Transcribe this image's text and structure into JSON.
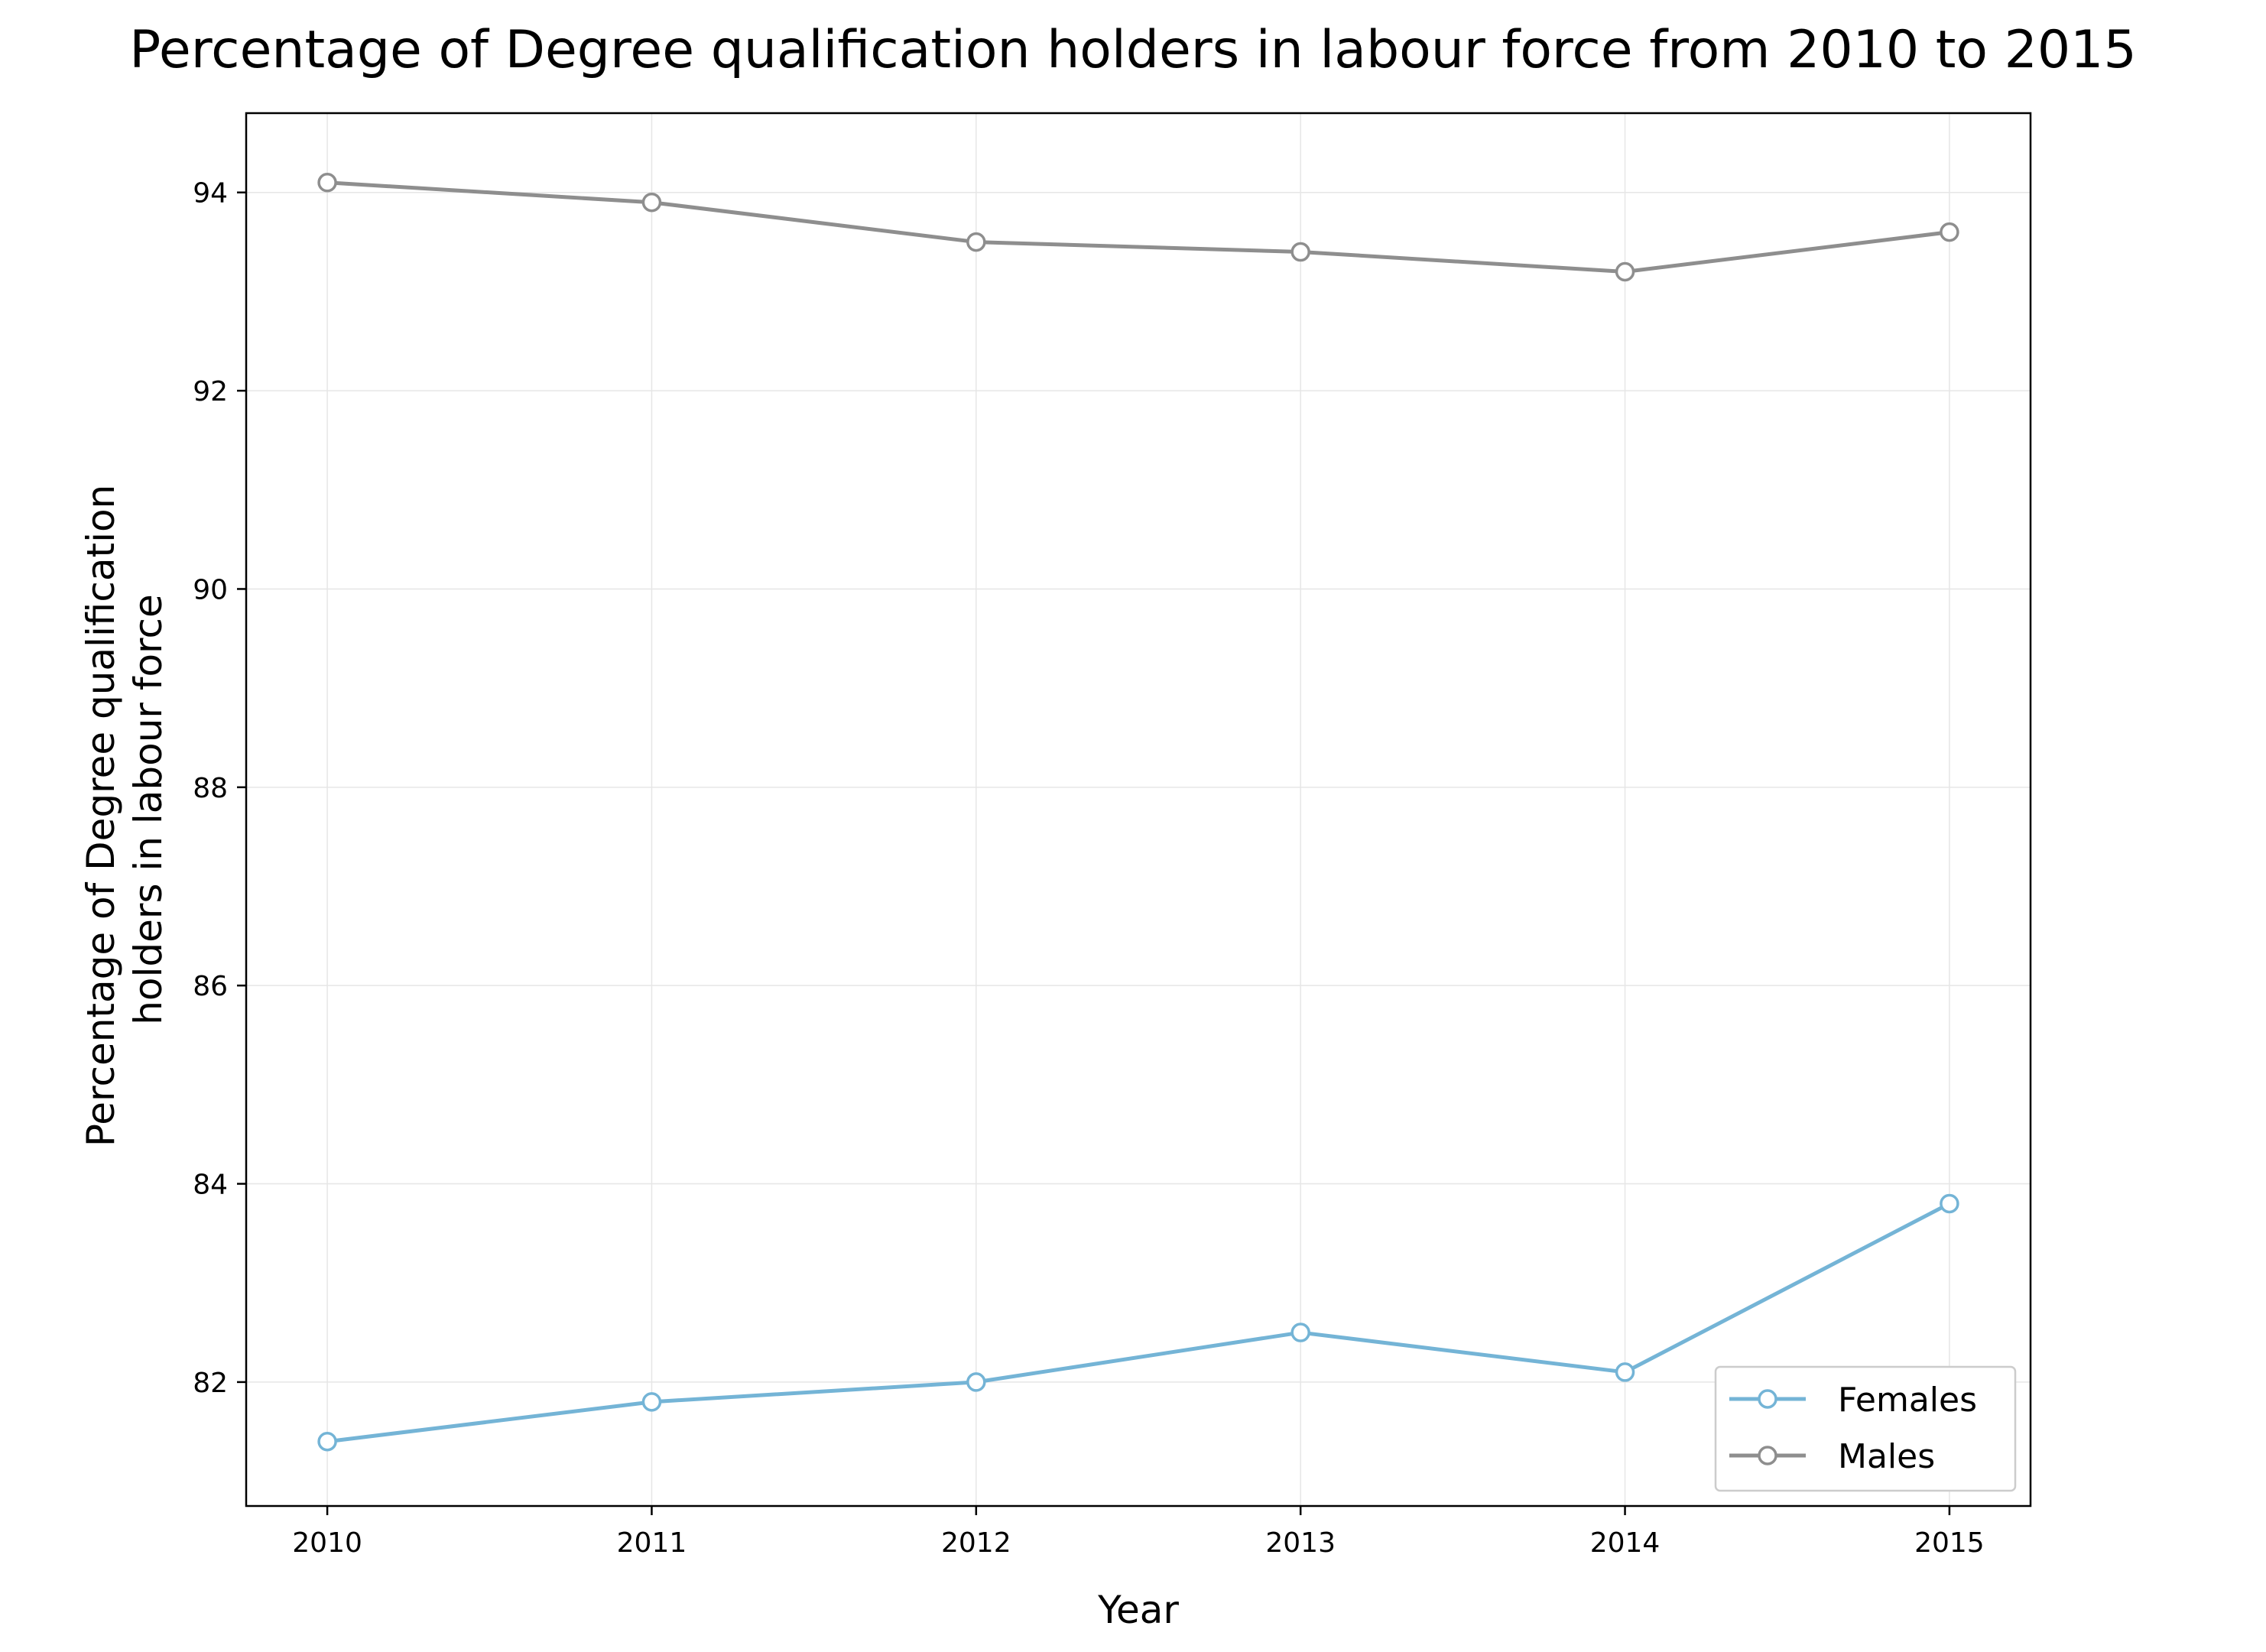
{
  "chart_data": {
    "type": "line",
    "title": "Percentage of Degree qualification holders in labour force from 2010 to 2015",
    "xlabel": "Year",
    "ylabel_lines": [
      "Percentage of Degree qualification",
      "holders in labour force"
    ],
    "x": [
      2010,
      2011,
      2012,
      2013,
      2014,
      2015
    ],
    "x_tick_labels": [
      "2010",
      "2011",
      "2012",
      "2013",
      "2014",
      "2015"
    ],
    "y_ticks": [
      82,
      84,
      86,
      88,
      90,
      92,
      94
    ],
    "y_tick_labels": [
      "82",
      "84",
      "86",
      "88",
      "90",
      "92",
      "94"
    ],
    "xlim": [
      2009.75,
      2015.25
    ],
    "ylim": [
      80.75,
      94.8
    ],
    "grid": true,
    "legend_position": "lower-right",
    "series": [
      {
        "name": "Females",
        "color": "#74b4d6",
        "marker": "hollow-circle",
        "values": [
          81.4,
          81.8,
          82.0,
          82.5,
          82.1,
          83.8
        ]
      },
      {
        "name": "Males",
        "color": "#8e8e8e",
        "marker": "hollow-circle",
        "values": [
          94.1,
          93.9,
          93.5,
          93.4,
          93.2,
          93.6
        ]
      }
    ]
  }
}
